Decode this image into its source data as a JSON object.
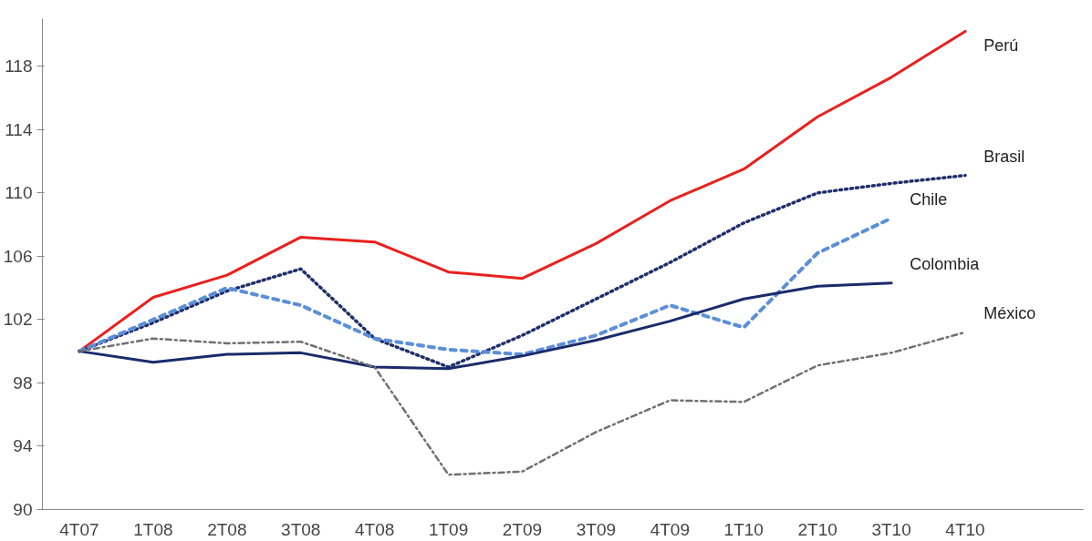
{
  "chart_data": {
    "type": "line",
    "categories": [
      "4T07",
      "1T08",
      "2T08",
      "3T08",
      "4T08",
      "1T09",
      "2T09",
      "3T09",
      "4T09",
      "1T10",
      "2T10",
      "3T10",
      "4T10"
    ],
    "ylim": [
      90,
      121
    ],
    "yticks": [
      90,
      94,
      98,
      102,
      106,
      110,
      114,
      118
    ],
    "grid": false,
    "legend": false,
    "marker": "none",
    "series": [
      {
        "name": "Perú",
        "color": "#e8211e",
        "line_style": "solid",
        "values": [
          100,
          103.4,
          104.8,
          107.2,
          106.9,
          105,
          104.6,
          106.8,
          109.5,
          111.5,
          114.8,
          117.3,
          120.2
        ]
      },
      {
        "name": "Brasil",
        "color": "#1f2f6b",
        "line_style": "dotted",
        "values": [
          100,
          101.8,
          103.8,
          105.2,
          100.8,
          99,
          101,
          103.3,
          105.6,
          108.1,
          110,
          110.6,
          111.1
        ]
      },
      {
        "name": "Chile",
        "color": "#5b8fd8",
        "line_style": "dashed",
        "values": [
          100,
          102,
          104,
          102.9,
          100.8,
          100.1,
          99.8,
          101,
          102.9,
          101.5,
          106.2,
          108.4,
          null
        ]
      },
      {
        "name": "Colombia",
        "color": "#1a2b6b",
        "line_style": "solid",
        "values": [
          100,
          99.3,
          99.8,
          99.9,
          99,
          98.9,
          99.7,
          100.7,
          101.9,
          103.3,
          104.1,
          104.3,
          null
        ]
      },
      {
        "name": "México",
        "color": "#707070",
        "line_style": "dashdot",
        "values": [
          100,
          100.8,
          100.5,
          100.6,
          99,
          92.2,
          92.4,
          94.9,
          96.9,
          96.8,
          99.1,
          99.9,
          101.2
        ]
      }
    ]
  }
}
